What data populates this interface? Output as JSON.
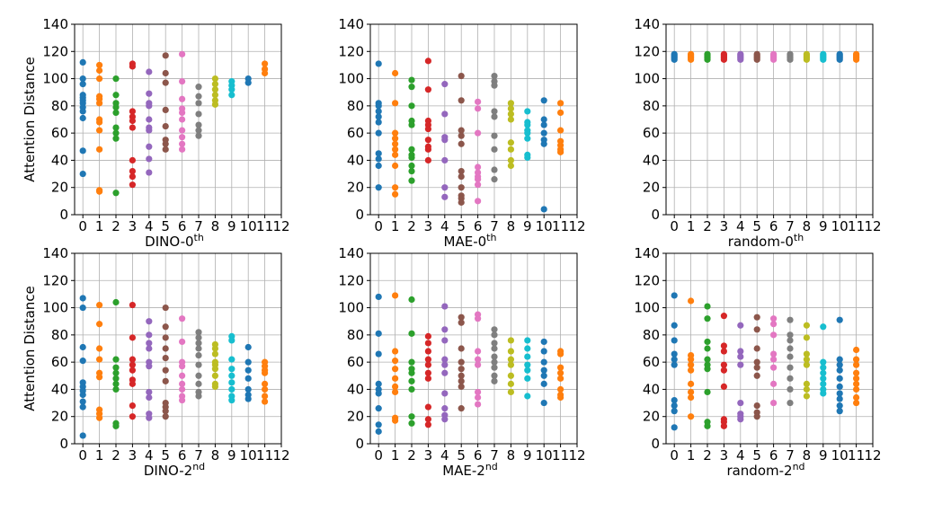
{
  "chart_data": [
    {
      "type": "scatter",
      "xlabel": "DINO-0",
      "xlabel_sup": "th",
      "ylabel": "Attention Distance",
      "xlim": [
        -0.5,
        12
      ],
      "ylim": [
        0,
        140
      ],
      "xticks": [
        "0",
        "1",
        "2",
        "3",
        "4",
        "5",
        "6",
        "7",
        "8",
        "9",
        "10",
        "11",
        "12"
      ],
      "yticks": [
        "0",
        "20",
        "40",
        "60",
        "80",
        "100",
        "120",
        "140"
      ],
      "layers": [
        [
          112,
          100,
          96,
          88,
          86,
          84,
          82,
          79,
          76,
          71,
          47,
          30
        ],
        [
          110,
          106,
          100,
          87,
          85,
          82,
          70,
          68,
          62,
          48,
          18,
          17
        ],
        [
          100,
          88,
          82,
          79,
          75,
          64,
          60,
          56,
          16
        ],
        [
          111,
          109,
          76,
          72,
          69,
          64,
          40,
          32,
          28,
          22
        ],
        [
          105,
          89,
          82,
          80,
          70,
          64,
          62,
          50,
          41,
          31
        ],
        [
          117,
          104,
          97,
          77,
          65,
          55,
          52,
          48
        ],
        [
          118,
          98,
          85,
          78,
          75,
          70,
          62,
          57,
          52,
          48
        ],
        [
          94,
          87,
          82,
          74,
          66,
          62,
          58
        ],
        [
          100,
          96,
          92,
          88,
          84,
          81
        ],
        [
          98,
          95,
          92,
          88
        ],
        [
          100,
          97
        ],
        [
          111,
          107,
          104
        ]
      ]
    },
    {
      "type": "scatter",
      "xlabel": "MAE-0",
      "xlabel_sup": "th",
      "ylabel": "",
      "xlim": [
        -0.5,
        12
      ],
      "ylim": [
        0,
        140
      ],
      "xticks": [
        "0",
        "1",
        "2",
        "3",
        "4",
        "5",
        "6",
        "7",
        "8",
        "9",
        "10",
        "11",
        "12"
      ],
      "yticks": [
        "0",
        "20",
        "40",
        "60",
        "80",
        "100",
        "120",
        "140"
      ],
      "layers": [
        [
          111,
          82,
          80,
          76,
          72,
          68,
          60,
          45,
          41,
          36,
          20
        ],
        [
          104,
          82,
          60,
          56,
          52,
          48,
          44,
          36,
          20,
          15
        ],
        [
          99,
          94,
          80,
          69,
          66,
          48,
          44,
          42,
          36,
          32,
          25
        ],
        [
          113,
          92,
          69,
          66,
          63,
          55,
          50,
          48,
          40
        ],
        [
          96,
          74,
          57,
          55,
          40,
          20,
          13
        ],
        [
          102,
          84,
          62,
          58,
          52,
          32,
          28,
          20,
          14,
          12,
          9
        ],
        [
          83,
          78,
          60,
          35,
          31,
          28,
          26,
          22,
          10
        ],
        [
          102,
          98,
          95,
          76,
          72,
          58,
          48,
          33,
          26
        ],
        [
          82,
          78,
          74,
          70,
          53,
          48,
          40,
          36
        ],
        [
          76,
          68,
          66,
          62,
          60,
          56,
          44,
          42
        ],
        [
          84,
          70,
          66,
          60,
          55,
          52,
          4
        ],
        [
          82,
          75,
          62,
          54,
          51,
          48,
          46
        ]
      ]
    },
    {
      "type": "scatter",
      "xlabel": "random-0",
      "xlabel_sup": "th",
      "ylabel": "",
      "xlim": [
        -0.5,
        12
      ],
      "ylim": [
        0,
        140
      ],
      "xticks": [
        "0",
        "1",
        "2",
        "3",
        "4",
        "5",
        "6",
        "7",
        "8",
        "9",
        "10",
        "11",
        "12"
      ],
      "yticks": [
        "0",
        "20",
        "40",
        "60",
        "80",
        "100",
        "120",
        "140"
      ],
      "layers": [
        [
          118,
          117,
          116,
          115,
          114
        ],
        [
          118,
          117,
          116,
          115,
          114
        ],
        [
          118,
          117,
          116,
          115,
          114
        ],
        [
          118,
          117,
          116,
          115,
          114
        ],
        [
          118,
          117,
          116,
          115,
          114
        ],
        [
          118,
          117,
          116,
          115,
          114
        ],
        [
          118,
          117,
          116,
          115,
          114
        ],
        [
          118,
          117,
          116,
          115,
          114
        ],
        [
          118,
          117,
          116,
          115,
          114
        ],
        [
          118,
          117,
          116,
          115,
          114
        ],
        [
          118,
          117,
          116,
          115,
          114
        ],
        [
          118,
          117,
          116,
          115,
          114
        ]
      ]
    },
    {
      "type": "scatter",
      "xlabel": "DINO-2",
      "xlabel_sup": "nd",
      "ylabel": "Attention Distance",
      "xlim": [
        -0.5,
        12
      ],
      "ylim": [
        0,
        140
      ],
      "xticks": [
        "0",
        "1",
        "2",
        "3",
        "4",
        "5",
        "6",
        "7",
        "8",
        "9",
        "10",
        "11",
        "12"
      ],
      "yticks": [
        "0",
        "20",
        "40",
        "60",
        "80",
        "100",
        "120",
        "140"
      ],
      "layers": [
        [
          107,
          100,
          71,
          61,
          45,
          42,
          39,
          36,
          31,
          27,
          6
        ],
        [
          102,
          88,
          70,
          62,
          52,
          49,
          25,
          22,
          19
        ],
        [
          104,
          62,
          56,
          52,
          48,
          44,
          40,
          15,
          13
        ],
        [
          102,
          78,
          62,
          58,
          54,
          47,
          44,
          28,
          20
        ],
        [
          90,
          80,
          74,
          70,
          60,
          57,
          38,
          34,
          22,
          19
        ],
        [
          100,
          86,
          78,
          70,
          63,
          54,
          46,
          30,
          27,
          24,
          20
        ],
        [
          92,
          75,
          60,
          57,
          50,
          44,
          40,
          35,
          32
        ],
        [
          82,
          78,
          74,
          70,
          65,
          58,
          50,
          44,
          38,
          35
        ],
        [
          73,
          70,
          66,
          60,
          58,
          55,
          50,
          44,
          42
        ],
        [
          79,
          76,
          62,
          55,
          50,
          45,
          40,
          35,
          32
        ],
        [
          71,
          60,
          54,
          48,
          40,
          36,
          33
        ],
        [
          60,
          57,
          54,
          52,
          44,
          40,
          35,
          31
        ]
      ]
    },
    {
      "type": "scatter",
      "xlabel": "MAE-2",
      "xlabel_sup": "nd",
      "ylabel": "",
      "xlim": [
        -0.5,
        12
      ],
      "ylim": [
        0,
        140
      ],
      "xticks": [
        "0",
        "1",
        "2",
        "3",
        "4",
        "5",
        "6",
        "7",
        "8",
        "9",
        "10",
        "11",
        "12"
      ],
      "yticks": [
        "0",
        "20",
        "40",
        "60",
        "80",
        "100",
        "120",
        "140"
      ],
      "layers": [
        [
          108,
          81,
          66,
          44,
          40,
          37,
          26,
          14,
          9
        ],
        [
          109,
          68,
          61,
          55,
          48,
          42,
          38,
          19,
          17
        ],
        [
          106,
          81,
          60,
          55,
          52,
          46,
          40,
          20,
          15
        ],
        [
          79,
          74,
          68,
          62,
          58,
          52,
          48,
          27,
          18,
          14
        ],
        [
          101,
          84,
          76,
          62,
          58,
          52,
          37,
          26,
          21,
          18
        ],
        [
          93,
          89,
          70,
          60,
          55,
          50,
          46,
          42,
          26
        ],
        [
          95,
          92,
          68,
          62,
          58,
          38,
          34,
          29
        ],
        [
          84,
          80,
          74,
          70,
          64,
          60,
          56,
          50,
          46
        ],
        [
          76,
          68,
          62,
          58,
          50,
          44,
          38
        ],
        [
          76,
          70,
          64,
          58,
          54,
          48,
          35
        ],
        [
          75,
          68,
          60,
          54,
          50,
          44,
          30
        ],
        [
          68,
          66,
          56,
          52,
          48,
          40,
          36,
          34
        ]
      ]
    },
    {
      "type": "scatter",
      "xlabel": "random-2",
      "xlabel_sup": "nd",
      "ylabel": "",
      "xlim": [
        -0.5,
        12
      ],
      "ylim": [
        0,
        140
      ],
      "xticks": [
        "0",
        "1",
        "2",
        "3",
        "4",
        "5",
        "6",
        "7",
        "8",
        "9",
        "10",
        "11",
        "12"
      ],
      "yticks": [
        "0",
        "20",
        "40",
        "60",
        "80",
        "100",
        "120",
        "140"
      ],
      "layers": [
        [
          109,
          87,
          76,
          66,
          62,
          58,
          32,
          28,
          24,
          12
        ],
        [
          105,
          65,
          62,
          58,
          54,
          44,
          38,
          34,
          20
        ],
        [
          101,
          92,
          75,
          70,
          62,
          58,
          55,
          38,
          16,
          13
        ],
        [
          94,
          72,
          68,
          58,
          54,
          42,
          18,
          16,
          13
        ],
        [
          87,
          68,
          64,
          58,
          30,
          22,
          20,
          18
        ],
        [
          93,
          84,
          70,
          60,
          56,
          50,
          28,
          23,
          20
        ],
        [
          92,
          88,
          80,
          66,
          62,
          56,
          44,
          30
        ],
        [
          91,
          80,
          76,
          70,
          64,
          56,
          48,
          40,
          30
        ],
        [
          87,
          78,
          66,
          62,
          58,
          44,
          40,
          35
        ],
        [
          86,
          60,
          56,
          52,
          48,
          44,
          40,
          37
        ],
        [
          91,
          62,
          58,
          54,
          48,
          42,
          37,
          33,
          28,
          24
        ],
        [
          69,
          62,
          58,
          52,
          48,
          44,
          40,
          34,
          30
        ]
      ]
    }
  ],
  "colors": [
    "#1f77b4",
    "#ff7f0e",
    "#2ca02c",
    "#d62728",
    "#9467bd",
    "#8c564b",
    "#e377c2",
    "#7f7f7f",
    "#bcbd22",
    "#17becf",
    "#1f77b4",
    "#ff7f0e"
  ]
}
